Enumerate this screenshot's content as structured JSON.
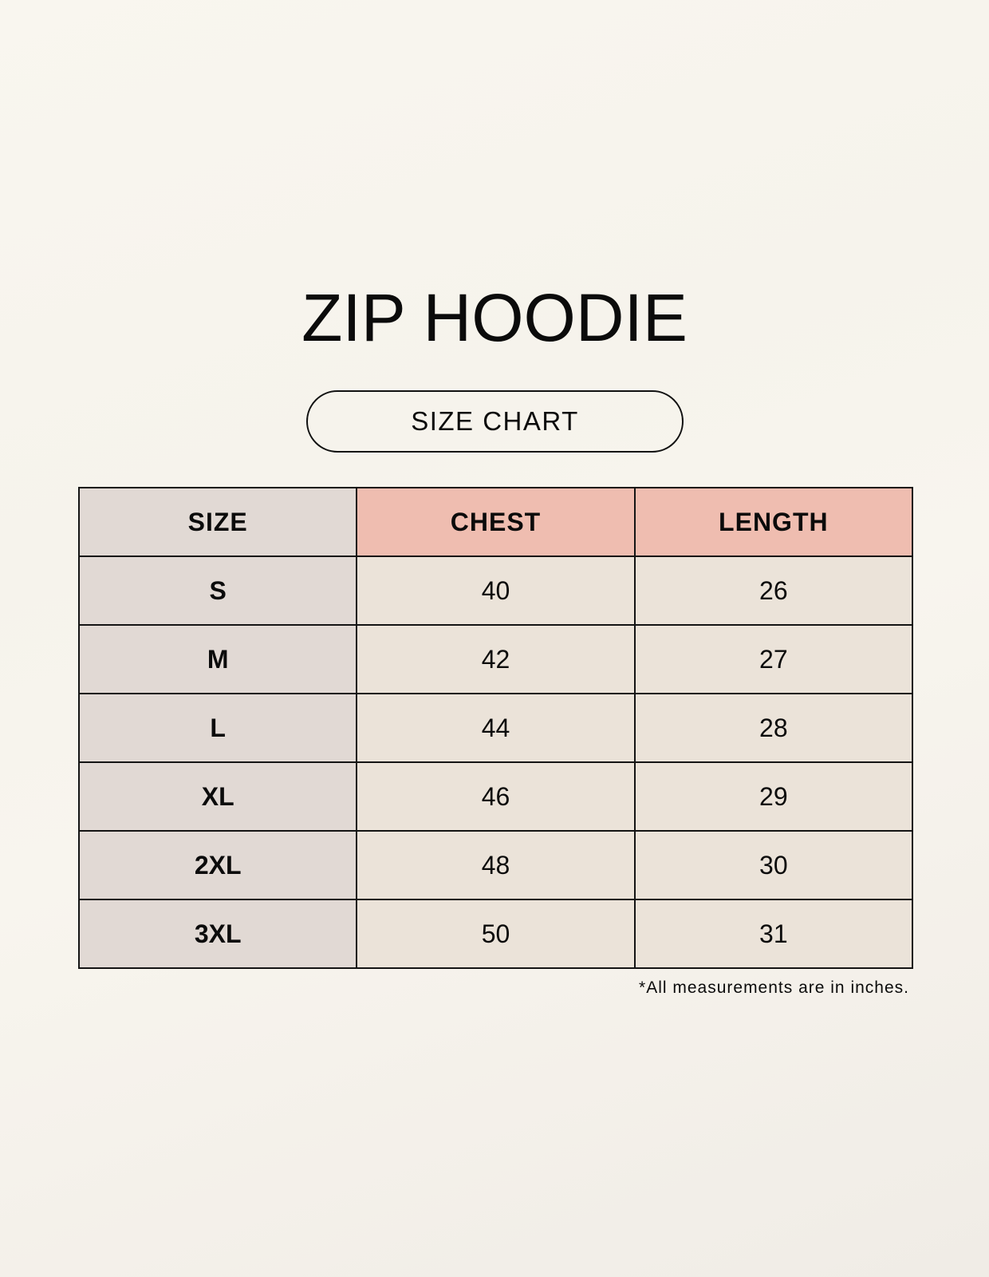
{
  "title": "ZIP HOODIE",
  "subtitle": "SIZE CHART",
  "table": {
    "headers": [
      "SIZE",
      "CHEST",
      "LENGTH"
    ],
    "rows": [
      [
        "S",
        "40",
        "26"
      ],
      [
        "M",
        "42",
        "27"
      ],
      [
        "L",
        "44",
        "28"
      ],
      [
        "XL",
        "46",
        "29"
      ],
      [
        "2XL",
        "48",
        "30"
      ],
      [
        "3XL",
        "50",
        "31"
      ]
    ]
  },
  "note": "*All measurements are in inches.",
  "colors": {
    "size_column": "#e1d9d4",
    "header_accent": "#efbdb0",
    "cells": "#ebe3d9"
  }
}
